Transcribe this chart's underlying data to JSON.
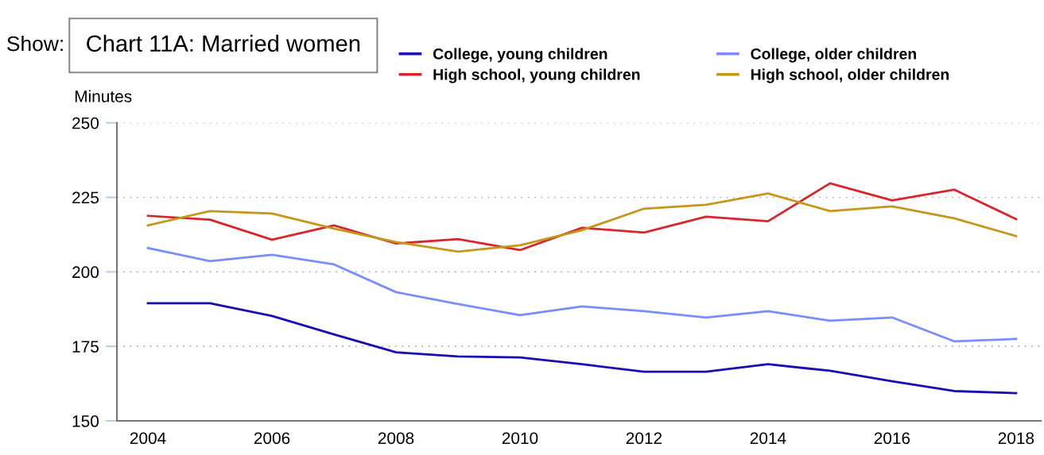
{
  "chart_data": {
    "type": "line",
    "ylabel": "Minutes",
    "annotations": [
      "Show:",
      "Chart 11A: Married women"
    ],
    "x": [
      2004,
      2005,
      2006,
      2007,
      2008,
      2009,
      2010,
      2011,
      2012,
      2013,
      2014,
      2015,
      2016,
      2017,
      2018
    ],
    "series": [
      {
        "name": "College, young children",
        "color": "#1a0bb0",
        "values": [
          189.5,
          189.5,
          185.2,
          179,
          173,
          171.6,
          171.3,
          169,
          166.5,
          166.5,
          169,
          166.8,
          163.3,
          160,
          159.3
        ]
      },
      {
        "name": "High school, young children",
        "color": "#d8262e",
        "values": [
          218.8,
          217.5,
          210.8,
          215.6,
          209.5,
          211,
          207.3,
          214.8,
          213.2,
          218.5,
          217,
          229.7,
          224,
          227.6,
          217.7
        ]
      },
      {
        "name": "College, older children",
        "color": "#7b8cff",
        "values": [
          208,
          203.6,
          205.7,
          202.5,
          193.2,
          189.2,
          185.5,
          188.4,
          186.8,
          184.7,
          186.8,
          183.6,
          184.7,
          176.7,
          177.5
        ]
      },
      {
        "name": "High school, older children",
        "color": "#c4961a",
        "values": [
          215.6,
          220.4,
          219.6,
          214.5,
          210,
          206.8,
          208.9,
          214,
          221.2,
          222.5,
          226.3,
          220.4,
          222,
          218,
          212
        ]
      }
    ],
    "xlim": [
      2003.5,
      2018.4
    ],
    "xticks": [
      2004,
      2006,
      2008,
      2010,
      2012,
      2014,
      2016,
      2018
    ],
    "ylim": [
      150,
      250
    ],
    "yticks": [
      150,
      175,
      200,
      225,
      250
    ],
    "grid": "y",
    "legend": "top",
    "marker": "none",
    "line_style": "solid"
  }
}
